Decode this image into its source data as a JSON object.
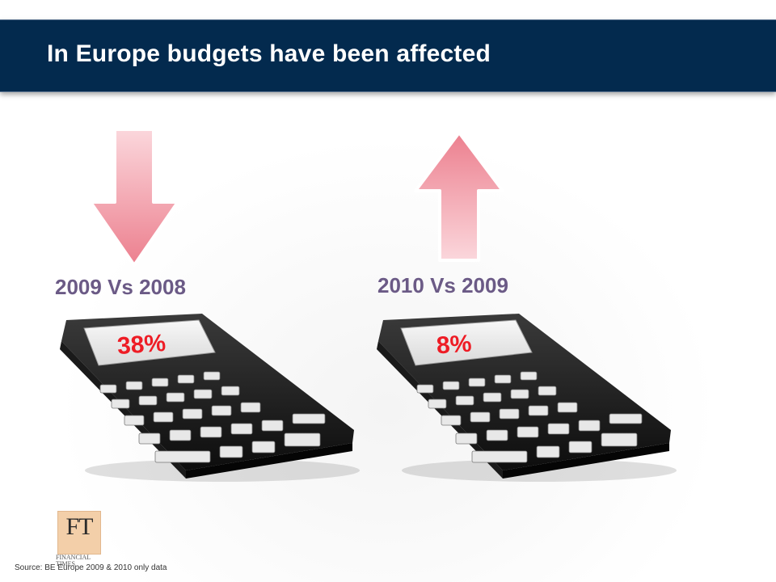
{
  "slide": {
    "title": "In Europe budgets have been affected",
    "source": "Source: BE Europe 2009 & 2010 only data",
    "logo": {
      "mark": "FT",
      "line1": "FINANCIAL",
      "line2": "TIMES"
    }
  },
  "panels": [
    {
      "label": "2009 Vs 2008",
      "value": "38%",
      "direction": "down"
    },
    {
      "label": "2010 Vs 2009",
      "value": "8%",
      "direction": "up"
    }
  ],
  "colors": {
    "header": "#032a4e",
    "label": "#6b5a86",
    "value": "#ee1c25",
    "arrow": "#f29aa5"
  }
}
